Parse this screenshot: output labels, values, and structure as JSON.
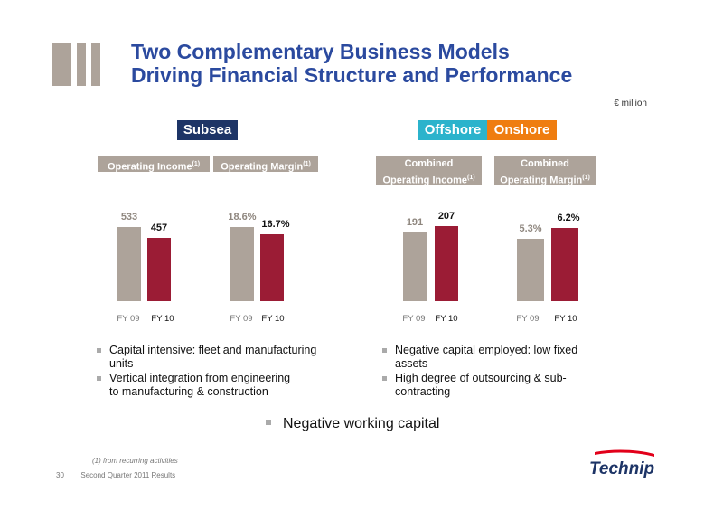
{
  "title": {
    "line1": "Two Complementary Business Models",
    "line2": "Driving Financial Structure and Performance"
  },
  "unit": "€ million",
  "colors": {
    "title": "#2b4a9f",
    "subsea": "#1d3466",
    "offshore": "#2bb3cc",
    "onshore": "#ef7d10",
    "bar_prev": "#ada39a",
    "bar_curr": "#9b1c35",
    "header_bg": "#ada39a"
  },
  "segments": {
    "subsea": "Subsea",
    "offshore": "Offshore",
    "onshore": "Onshore"
  },
  "headers": {
    "subsea_income": "Operating Income",
    "subsea_margin": "Operating Margin",
    "combined_income_line1": "Combined",
    "combined_income_line2": "Operating Income",
    "combined_margin_line1": "Combined",
    "combined_margin_line2": "Operating Margin",
    "footnote_mark": "(1)"
  },
  "chart_data": [
    {
      "type": "bar",
      "title": "Operating Income",
      "categories": [
        "FY 09",
        "FY 10"
      ],
      "values": [
        533,
        457
      ],
      "labels": [
        "533",
        "457"
      ],
      "ylim": [
        0,
        560
      ]
    },
    {
      "type": "bar",
      "title": "Operating Margin",
      "categories": [
        "FY 09",
        "FY 10"
      ],
      "values": [
        18.6,
        16.7
      ],
      "labels": [
        "18.6%",
        "16.7%"
      ],
      "ylim": [
        0,
        19.5
      ]
    },
    {
      "type": "bar",
      "title": "Combined Operating Income",
      "categories": [
        "FY 09",
        "FY 10"
      ],
      "values": [
        191,
        207
      ],
      "labels": [
        "191",
        "207"
      ],
      "ylim": [
        0,
        215
      ]
    },
    {
      "type": "bar",
      "title": "Combined Operating Margin",
      "categories": [
        "FY 09",
        "FY 10"
      ],
      "values": [
        5.3,
        6.2
      ],
      "labels": [
        "5.3%",
        "6.2%"
      ],
      "ylim": [
        0,
        6.6
      ]
    }
  ],
  "bullets_left": [
    {
      "line1": "Capital intensive: fleet and manufacturing",
      "line2": "units"
    },
    {
      "line1": "Vertical integration from engineering",
      "line2": "to manufacturing & construction"
    }
  ],
  "bullets_right": [
    {
      "line1": "Negative capital employed: low fixed",
      "line2": "assets"
    },
    {
      "line1": "High degree of outsourcing & sub-",
      "line2": "contracting"
    }
  ],
  "bottom_bullet": "Negative working capital",
  "footnote": "(1) from recurring activities",
  "footer": {
    "page": "30",
    "text": "Second Quarter 2011 Results"
  },
  "brand": "Technip"
}
